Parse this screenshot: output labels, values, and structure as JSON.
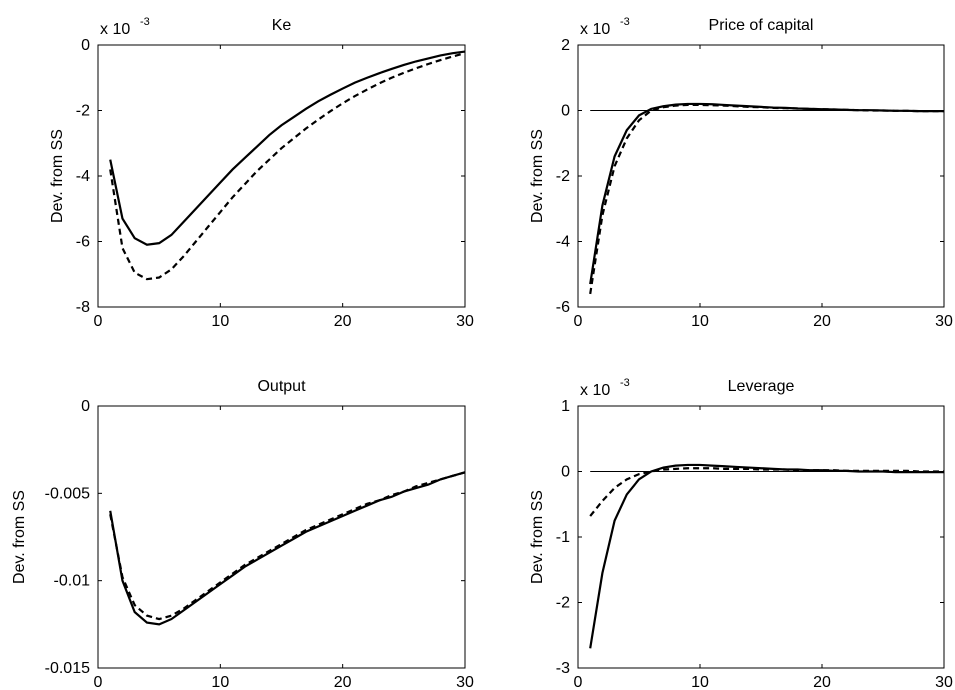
{
  "chart_data": [
    {
      "type": "line",
      "title": "Ke",
      "ylabel": "Dev. from SS",
      "multiplier": {
        "base": "x 10",
        "exponent": "-3"
      },
      "xlim": [
        0,
        30
      ],
      "ylim": [
        -8,
        0
      ],
      "xticks": [
        0,
        10,
        20,
        30
      ],
      "xtick_labels": [
        "0",
        "10",
        "20",
        "30"
      ],
      "yticks": [
        -8,
        -6,
        -4,
        -2,
        0
      ],
      "ytick_labels": [
        "-8",
        "-6",
        "-4",
        "-2",
        "0"
      ],
      "zero_line": false,
      "x": [
        1,
        2,
        3,
        4,
        5,
        6,
        7,
        8,
        9,
        10,
        11,
        12,
        13,
        14,
        15,
        16,
        17,
        18,
        19,
        20,
        21,
        22,
        23,
        24,
        25,
        26,
        27,
        28,
        29,
        30
      ],
      "series": [
        {
          "style": "solid",
          "values": [
            -3.5,
            -5.3,
            -5.9,
            -6.1,
            -6.05,
            -5.8,
            -5.4,
            -5.0,
            -4.6,
            -4.2,
            -3.8,
            -3.45,
            -3.1,
            -2.75,
            -2.45,
            -2.2,
            -1.95,
            -1.72,
            -1.52,
            -1.33,
            -1.15,
            -1.0,
            -0.86,
            -0.73,
            -0.61,
            -0.5,
            -0.41,
            -0.32,
            -0.25,
            -0.2
          ]
        },
        {
          "style": "dashed",
          "values": [
            -3.8,
            -6.2,
            -6.95,
            -7.15,
            -7.1,
            -6.85,
            -6.45,
            -6.0,
            -5.55,
            -5.1,
            -4.65,
            -4.25,
            -3.85,
            -3.5,
            -3.15,
            -2.85,
            -2.55,
            -2.28,
            -2.02,
            -1.78,
            -1.56,
            -1.36,
            -1.17,
            -1.0,
            -0.85,
            -0.71,
            -0.58,
            -0.46,
            -0.35,
            -0.25
          ]
        }
      ]
    },
    {
      "type": "line",
      "title": "Price of capital",
      "ylabel": "Dev. from SS",
      "multiplier": {
        "base": "x 10",
        "exponent": "-3"
      },
      "xlim": [
        0,
        30
      ],
      "ylim": [
        -6,
        2
      ],
      "xticks": [
        0,
        10,
        20,
        30
      ],
      "xtick_labels": [
        "0",
        "10",
        "20",
        "30"
      ],
      "yticks": [
        -6,
        -4,
        -2,
        0,
        2
      ],
      "ytick_labels": [
        "-6",
        "-4",
        "-2",
        "0",
        "2"
      ],
      "zero_line": true,
      "x": [
        1,
        2,
        3,
        4,
        5,
        6,
        7,
        8,
        9,
        10,
        11,
        12,
        13,
        14,
        15,
        16,
        17,
        18,
        19,
        20,
        21,
        22,
        23,
        24,
        25,
        26,
        27,
        28,
        29,
        30
      ],
      "series": [
        {
          "style": "solid",
          "values": [
            -5.3,
            -2.9,
            -1.4,
            -0.6,
            -0.15,
            0.05,
            0.13,
            0.18,
            0.2,
            0.2,
            0.19,
            0.17,
            0.15,
            0.13,
            0.11,
            0.09,
            0.08,
            0.06,
            0.05,
            0.04,
            0.03,
            0.02,
            0.01,
            0.01,
            0.0,
            -0.01,
            -0.01,
            -0.02,
            -0.02,
            -0.02
          ]
        },
        {
          "style": "dashed",
          "values": [
            -5.6,
            -3.2,
            -1.7,
            -0.85,
            -0.3,
            0.0,
            0.1,
            0.15,
            0.17,
            0.17,
            0.16,
            0.15,
            0.13,
            0.11,
            0.1,
            0.08,
            0.07,
            0.06,
            0.05,
            0.04,
            0.03,
            0.02,
            0.01,
            0.0,
            0.0,
            -0.01,
            -0.01,
            -0.02,
            -0.02,
            -0.02
          ]
        }
      ]
    },
    {
      "type": "line",
      "title": "Output",
      "ylabel": "Dev. from SS",
      "multiplier": null,
      "xlim": [
        0,
        30
      ],
      "ylim": [
        -0.015,
        0
      ],
      "xticks": [
        0,
        10,
        20,
        30
      ],
      "xtick_labels": [
        "0",
        "10",
        "20",
        "30"
      ],
      "yticks": [
        -0.015,
        -0.01,
        -0.005,
        0
      ],
      "ytick_labels": [
        "-0.015",
        "-0.01",
        "-0.005",
        "0"
      ],
      "zero_line": false,
      "x": [
        1,
        2,
        3,
        4,
        5,
        6,
        7,
        8,
        9,
        10,
        11,
        12,
        13,
        14,
        15,
        16,
        17,
        18,
        19,
        20,
        21,
        22,
        23,
        24,
        25,
        26,
        27,
        28,
        29,
        30
      ],
      "series": [
        {
          "style": "solid",
          "values": [
            -0.006,
            -0.01,
            -0.0118,
            -0.0124,
            -0.0125,
            -0.0122,
            -0.0117,
            -0.0112,
            -0.0107,
            -0.0102,
            -0.0097,
            -0.0092,
            -0.0088,
            -0.0084,
            -0.008,
            -0.0076,
            -0.0072,
            -0.0069,
            -0.0066,
            -0.0063,
            -0.006,
            -0.0057,
            -0.0054,
            -0.0052,
            -0.0049,
            -0.0047,
            -0.0045,
            -0.0042,
            -0.004,
            -0.0038
          ]
        },
        {
          "style": "dashed",
          "values": [
            -0.0062,
            -0.0098,
            -0.0114,
            -0.012,
            -0.0122,
            -0.012,
            -0.0116,
            -0.0111,
            -0.0106,
            -0.0101,
            -0.0096,
            -0.0091,
            -0.0087,
            -0.0083,
            -0.0079,
            -0.0075,
            -0.0071,
            -0.0068,
            -0.0065,
            -0.0062,
            -0.0059,
            -0.0056,
            -0.0054,
            -0.0051,
            -0.0049,
            -0.0046,
            -0.0044,
            -0.0042,
            -0.004,
            -0.0038
          ]
        }
      ]
    },
    {
      "type": "line",
      "title": "Leverage",
      "ylabel": "Dev. from SS",
      "multiplier": {
        "base": "x 10",
        "exponent": "-3"
      },
      "xlim": [
        0,
        30
      ],
      "ylim": [
        -3,
        1
      ],
      "xticks": [
        0,
        10,
        20,
        30
      ],
      "xtick_labels": [
        "0",
        "10",
        "20",
        "30"
      ],
      "yticks": [
        -3,
        -2,
        -1,
        0,
        1
      ],
      "ytick_labels": [
        "-3",
        "-2",
        "-1",
        "0",
        "1"
      ],
      "zero_line": true,
      "x": [
        1,
        2,
        3,
        4,
        5,
        6,
        7,
        8,
        9,
        10,
        11,
        12,
        13,
        14,
        15,
        16,
        17,
        18,
        19,
        20,
        21,
        22,
        23,
        24,
        25,
        26,
        27,
        28,
        29,
        30
      ],
      "series": [
        {
          "style": "solid",
          "values": [
            -2.7,
            -1.55,
            -0.75,
            -0.35,
            -0.12,
            0.0,
            0.06,
            0.09,
            0.1,
            0.1,
            0.09,
            0.08,
            0.07,
            0.06,
            0.05,
            0.04,
            0.03,
            0.03,
            0.02,
            0.02,
            0.01,
            0.01,
            0.0,
            0.0,
            0.0,
            -0.01,
            -0.01,
            -0.01,
            -0.01,
            -0.01
          ]
        },
        {
          "style": "dashed",
          "values": [
            -0.68,
            -0.45,
            -0.25,
            -0.12,
            -0.04,
            0.0,
            0.03,
            0.04,
            0.05,
            0.05,
            0.05,
            0.04,
            0.04,
            0.04,
            0.03,
            0.03,
            0.03,
            0.02,
            0.02,
            0.02,
            0.02,
            0.01,
            0.01,
            0.01,
            0.01,
            0.01,
            0.01,
            0.0,
            0.0,
            0.0
          ]
        }
      ]
    }
  ]
}
